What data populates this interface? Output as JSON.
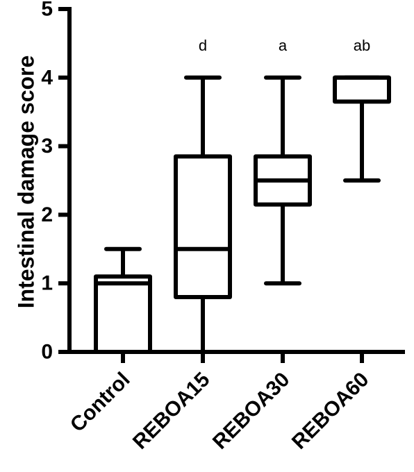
{
  "chart_data": {
    "type": "boxplot",
    "title": "",
    "xlabel": "",
    "ylabel": "Intestinal damage score",
    "ylim": [
      0,
      5
    ],
    "yticks": [
      "0",
      "1",
      "2",
      "3",
      "4",
      "5"
    ],
    "grid": false,
    "categories": [
      "Control",
      "REBOA15",
      "REBOA30",
      "REBOA60"
    ],
    "boxes": [
      {
        "min": 0,
        "q1": 0,
        "median": 1.0,
        "q3": 1.1,
        "max": 1.5,
        "annotation": ""
      },
      {
        "min": 0,
        "q1": 0.8,
        "median": 1.5,
        "q3": 2.85,
        "max": 4.0,
        "annotation": "d"
      },
      {
        "min": 1.0,
        "q1": 2.15,
        "median": 2.5,
        "q3": 2.85,
        "max": 4.0,
        "annotation": "a"
      },
      {
        "min": 2.5,
        "q1": 3.65,
        "median": 4.0,
        "q3": 4.0,
        "max": 4.0,
        "annotation": "ab"
      }
    ],
    "color": "#000000"
  }
}
